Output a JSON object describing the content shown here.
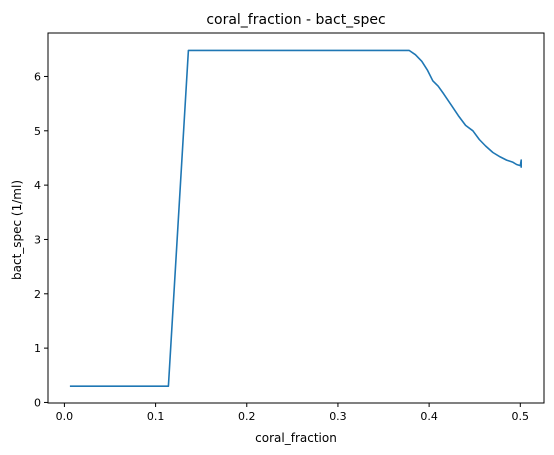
{
  "chart_data": {
    "type": "line",
    "title": "coral_fraction - bact_spec",
    "xlabel": "coral_fraction",
    "ylabel": "bact_spec (1/ml)",
    "xlim": [
      -0.018,
      0.526
    ],
    "ylim": [
      -0.01,
      6.8
    ],
    "xticks": [
      0,
      0.1,
      0.2,
      0.3,
      0.4,
      0.5
    ],
    "xtick_labels": [
      "0.0",
      "0.1",
      "0.2",
      "0.3",
      "0.4",
      "0.5"
    ],
    "yticks": [
      0,
      1,
      2,
      3,
      4,
      5,
      6
    ],
    "ytick_labels": [
      "0",
      "1",
      "2",
      "3",
      "4",
      "5",
      "6"
    ],
    "grid": false,
    "legend": "none",
    "series": [
      {
        "color": "#1f77b4",
        "x": [
          0.006,
          0.114,
          0.136,
          0.378,
          0.385,
          0.392,
          0.398,
          0.404,
          0.41,
          0.416,
          0.424,
          0.432,
          0.44,
          0.448,
          0.455,
          0.462,
          0.47,
          0.478,
          0.485,
          0.492,
          0.496,
          0.5,
          0.501,
          0.501
        ],
        "y": [
          0.3,
          0.3,
          6.48,
          6.48,
          6.4,
          6.28,
          6.12,
          5.92,
          5.82,
          5.68,
          5.48,
          5.28,
          5.1,
          5.0,
          4.84,
          4.72,
          4.6,
          4.52,
          4.46,
          4.42,
          4.38,
          4.36,
          4.46,
          4.32
        ]
      }
    ]
  }
}
